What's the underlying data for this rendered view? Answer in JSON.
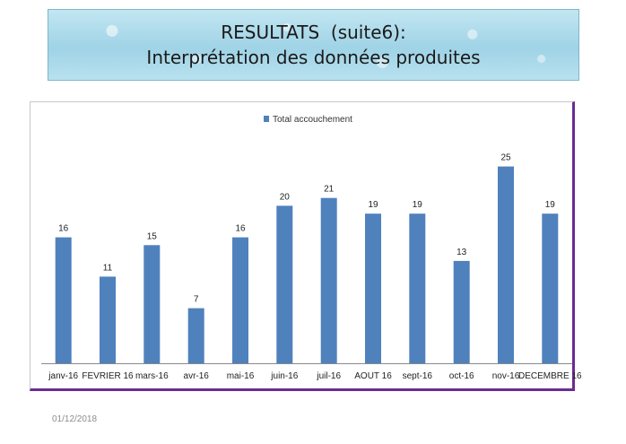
{
  "slide": {
    "title_line1": "RESULTATS  (suite6):",
    "title_line2": "Interprétation des données produites",
    "footer_date": "01/12/2018"
  },
  "chart_data": {
    "type": "bar",
    "categories": [
      "janv-16",
      "FEVRIER 16",
      "mars-16",
      "avr-16",
      "mai-16",
      "juin-16",
      "juil-16",
      "AOUT 16",
      "sept-16",
      "oct-16",
      "nov-16",
      "DECEMBRE 16"
    ],
    "series": [
      {
        "name": "Total accouchement",
        "values": [
          16,
          11,
          15,
          7,
          16,
          20,
          21,
          19,
          19,
          13,
          25,
          19
        ],
        "color": "#4f81bd"
      }
    ],
    "ylim": [
      0,
      27
    ],
    "legend_position": "top-center",
    "grid": false,
    "data_labels": true
  }
}
